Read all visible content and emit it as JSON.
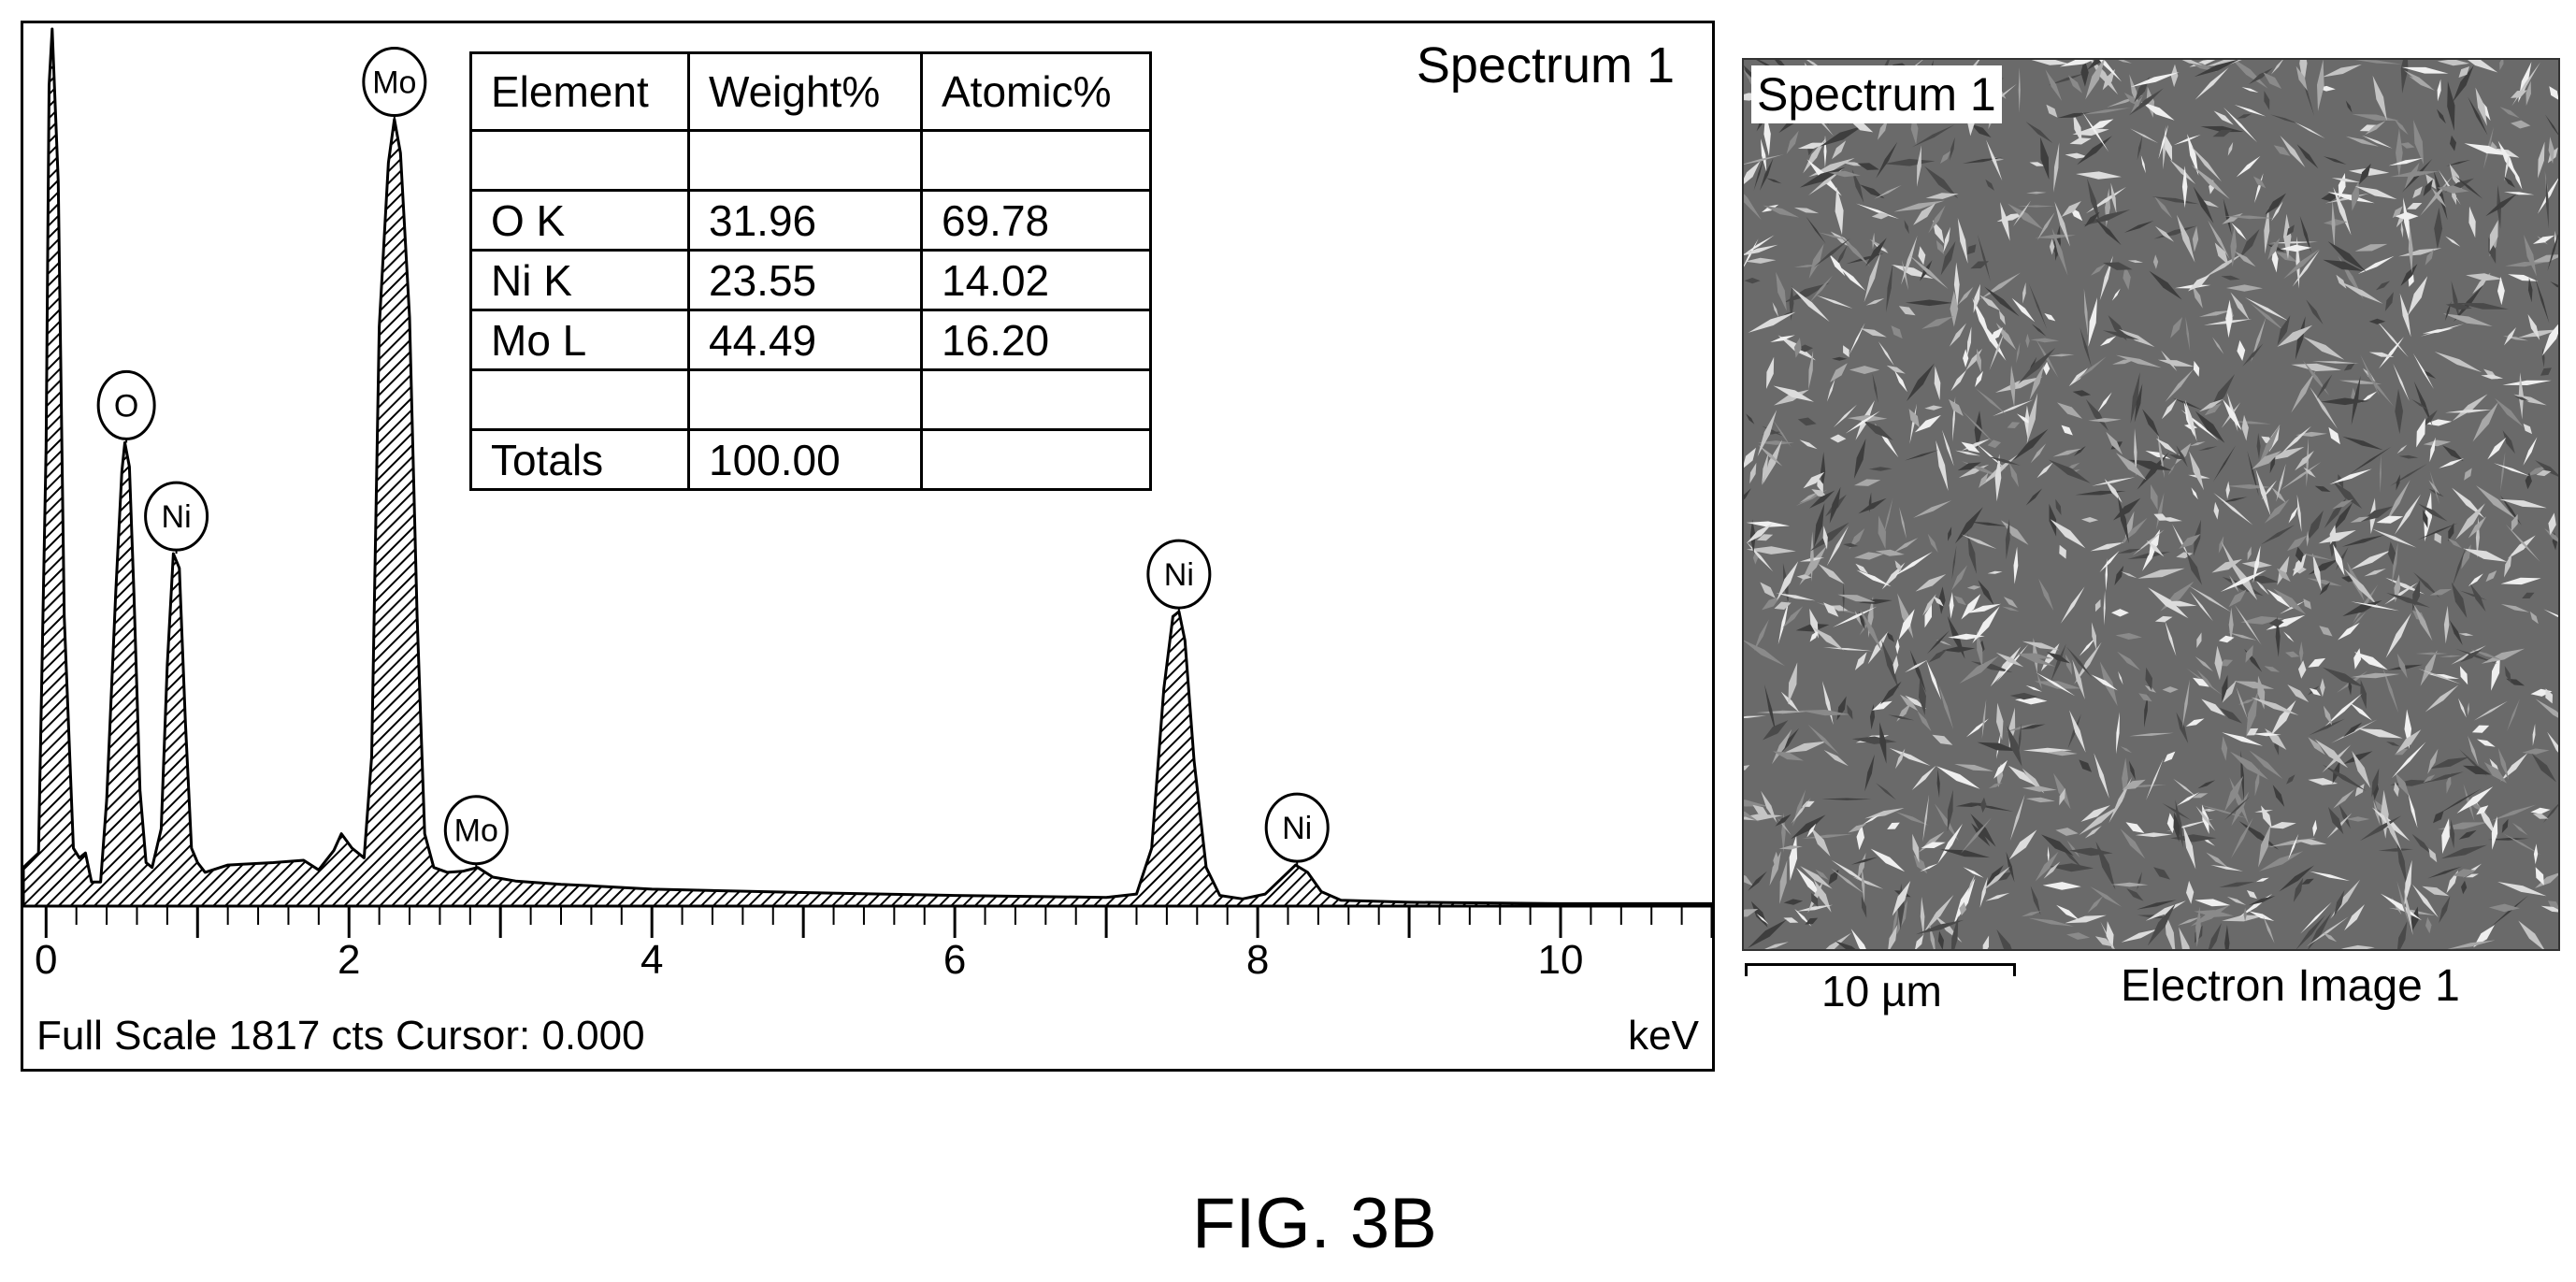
{
  "chart_data": {
    "type": "area",
    "title": "Spectrum 1",
    "xlabel": "keV",
    "status_text": "Full Scale 1817 cts Cursor: 0.000",
    "xlim": [
      -0.15,
      11.0
    ],
    "ylim": [
      0,
      1817
    ],
    "x_ticks": [
      0,
      2,
      4,
      6,
      8,
      10
    ],
    "x_tick_labels": [
      "0",
      "2",
      "4",
      "6",
      "8",
      "10"
    ],
    "fill": "hatched",
    "series": [
      {
        "x": [
          -0.15,
          -0.05,
          0.0,
          0.02,
          0.04,
          0.08,
          0.12,
          0.18,
          0.22,
          0.26,
          0.3,
          0.36,
          0.4,
          0.46,
          0.5,
          0.52,
          0.55,
          0.58,
          0.62,
          0.66,
          0.7,
          0.76,
          0.8,
          0.84,
          0.88,
          0.92,
          0.96,
          1.0,
          1.05,
          1.2,
          1.5,
          1.7,
          1.8,
          1.9,
          1.95,
          2.02,
          2.1,
          2.15,
          2.2,
          2.26,
          2.3,
          2.34,
          2.4,
          2.45,
          2.5,
          2.56,
          2.65,
          2.75,
          2.85,
          2.95,
          3.1,
          3.4,
          3.6,
          4.0,
          5.0,
          6.0,
          7.0,
          7.2,
          7.3,
          7.38,
          7.44,
          7.48,
          7.52,
          7.58,
          7.66,
          7.75,
          7.9,
          8.05,
          8.15,
          8.25,
          8.33,
          8.42,
          8.55,
          9.0,
          10.0,
          11.0
        ],
        "values": [
          80,
          110,
          950,
          1700,
          1817,
          1500,
          600,
          120,
          100,
          110,
          50,
          50,
          220,
          650,
          900,
          960,
          910,
          650,
          240,
          90,
          80,
          160,
          500,
          730,
          700,
          380,
          120,
          90,
          70,
          85,
          90,
          95,
          75,
          115,
          150,
          120,
          100,
          310,
          1200,
          1540,
          1630,
          1560,
          1220,
          600,
          150,
          80,
          70,
          72,
          80,
          60,
          52,
          45,
          42,
          35,
          28,
          22,
          18,
          25,
          120,
          450,
          600,
          610,
          550,
          300,
          80,
          22,
          15,
          25,
          55,
          85,
          70,
          30,
          12,
          8,
          5,
          5
        ]
      }
    ],
    "peak_labels": [
      {
        "label": "O",
        "x": 0.53,
        "y": 960
      },
      {
        "label": "Ni",
        "x": 0.86,
        "y": 730
      },
      {
        "label": "Mo",
        "x": 2.3,
        "y": 1630
      },
      {
        "label": "Mo",
        "x": 2.84,
        "y": 80
      },
      {
        "label": "Ni",
        "x": 7.48,
        "y": 610
      },
      {
        "label": "Ni",
        "x": 8.26,
        "y": 85
      }
    ]
  },
  "quant_table": {
    "headers": [
      "Element",
      "Weight%",
      "Atomic%"
    ],
    "rows": [
      [
        "",
        "",
        ""
      ],
      [
        "O K",
        "31.96",
        "69.78"
      ],
      [
        "Ni K",
        "23.55",
        "14.02"
      ],
      [
        "Mo L",
        "44.49",
        "16.20"
      ],
      [
        "",
        "",
        ""
      ],
      [
        "Totals",
        "100.00",
        ""
      ]
    ]
  },
  "electron_image": {
    "label": "Spectrum 1",
    "caption": "Electron Image 1",
    "scale_bar_label": "10 µm"
  },
  "figure_label": "FIG. 3B",
  "colors": {
    "ink": "#000000",
    "background": "#ffffff",
    "sem_base": "#6a6a6a",
    "sem_flake": "#d8d8d8"
  }
}
